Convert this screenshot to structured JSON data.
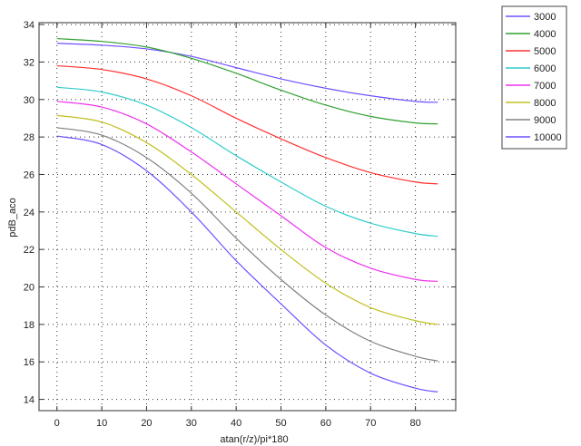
{
  "chart_data": {
    "type": "line",
    "title": "",
    "xlabel": "atan(r/z)/pi*180",
    "ylabel": "pdB_aco",
    "xlim": [
      -4,
      89
    ],
    "ylim": [
      13.4,
      34.1
    ],
    "xticks": [
      0,
      10,
      20,
      30,
      40,
      50,
      60,
      70,
      80
    ],
    "yticks": [
      14,
      16,
      18,
      20,
      22,
      24,
      26,
      28,
      30,
      32,
      34
    ],
    "grid": true,
    "legend_position": "outside-top-right",
    "x": [
      0,
      10,
      20,
      30,
      40,
      50,
      60,
      70,
      80,
      85
    ],
    "series": [
      {
        "name": "3000",
        "color": "#7050ff",
        "values": [
          33.0,
          32.9,
          32.7,
          32.3,
          31.7,
          31.1,
          30.6,
          30.2,
          29.9,
          29.85
        ]
      },
      {
        "name": "4000",
        "color": "#30a030",
        "values": [
          33.25,
          33.1,
          32.8,
          32.2,
          31.4,
          30.5,
          29.7,
          29.1,
          28.75,
          28.7
        ]
      },
      {
        "name": "5000",
        "color": "#ff3030",
        "values": [
          31.8,
          31.6,
          31.1,
          30.2,
          29.0,
          27.9,
          26.9,
          26.1,
          25.6,
          25.5
        ]
      },
      {
        "name": "6000",
        "color": "#30cccc",
        "values": [
          30.65,
          30.4,
          29.7,
          28.5,
          27.0,
          25.6,
          24.3,
          23.4,
          22.85,
          22.7
        ]
      },
      {
        "name": "7000",
        "color": "#ee30ee",
        "values": [
          29.9,
          29.6,
          28.7,
          27.2,
          25.5,
          23.8,
          22.1,
          21.0,
          20.4,
          20.3
        ]
      },
      {
        "name": "8000",
        "color": "#c0c020",
        "values": [
          29.15,
          28.8,
          27.7,
          26.0,
          24.0,
          22.0,
          20.2,
          18.9,
          18.2,
          18.0
        ]
      },
      {
        "name": "9000",
        "color": "#808080",
        "values": [
          28.5,
          28.1,
          26.9,
          25.0,
          22.6,
          20.4,
          18.5,
          17.1,
          16.3,
          16.05
        ]
      },
      {
        "name": "10000",
        "color": "#7050ff",
        "values": [
          28.05,
          27.6,
          26.2,
          24.0,
          21.4,
          19.1,
          16.9,
          15.4,
          14.6,
          14.4
        ]
      }
    ]
  }
}
